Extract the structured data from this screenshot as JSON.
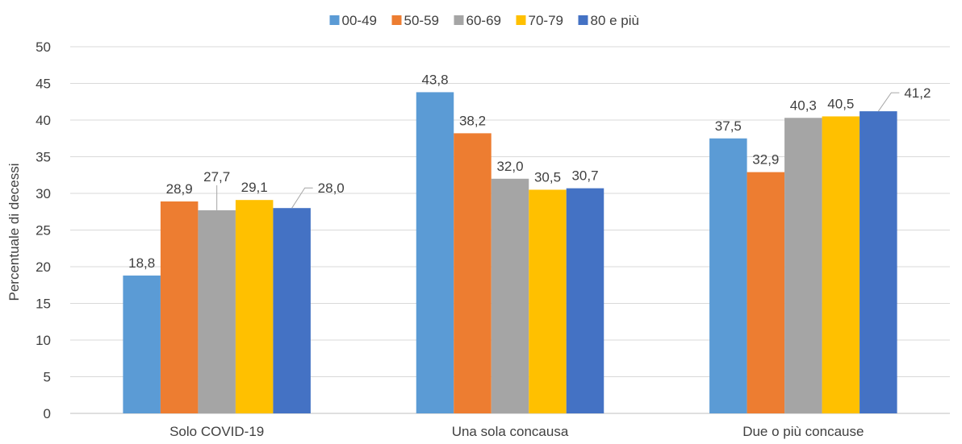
{
  "chart_data": {
    "type": "bar",
    "title": "",
    "xlabel": "",
    "ylabel": "Percentuale di decessi",
    "ylim": [
      0,
      50
    ],
    "yticks": [
      0,
      5,
      10,
      15,
      20,
      25,
      30,
      35,
      40,
      45,
      50
    ],
    "grid": true,
    "legend_position": "top-center",
    "categories": [
      "Solo COVID-19",
      "Una sola concausa",
      "Due o più concause"
    ],
    "series": [
      {
        "name": "00-49",
        "color": "#5B9BD5",
        "values": [
          18.8,
          43.8,
          37.5
        ],
        "labels": [
          "18,8",
          "43,8",
          "37,5"
        ]
      },
      {
        "name": "50-59",
        "color": "#ED7D31",
        "values": [
          28.9,
          38.2,
          32.9
        ],
        "labels": [
          "28,9",
          "38,2",
          "32,9"
        ]
      },
      {
        "name": "60-69",
        "color": "#A5A5A5",
        "values": [
          27.7,
          32.0,
          40.3
        ],
        "labels": [
          "27,7",
          "32,0",
          "40,3"
        ]
      },
      {
        "name": "70-79",
        "color": "#FFC000",
        "values": [
          29.1,
          30.5,
          40.5
        ],
        "labels": [
          "29,1",
          "30,5",
          "40,5"
        ]
      },
      {
        "name": "80 e più",
        "color": "#4472C4",
        "values": [
          28.0,
          30.7,
          41.2
        ],
        "labels": [
          "28,0",
          "30,7",
          "41,2"
        ]
      }
    ]
  }
}
